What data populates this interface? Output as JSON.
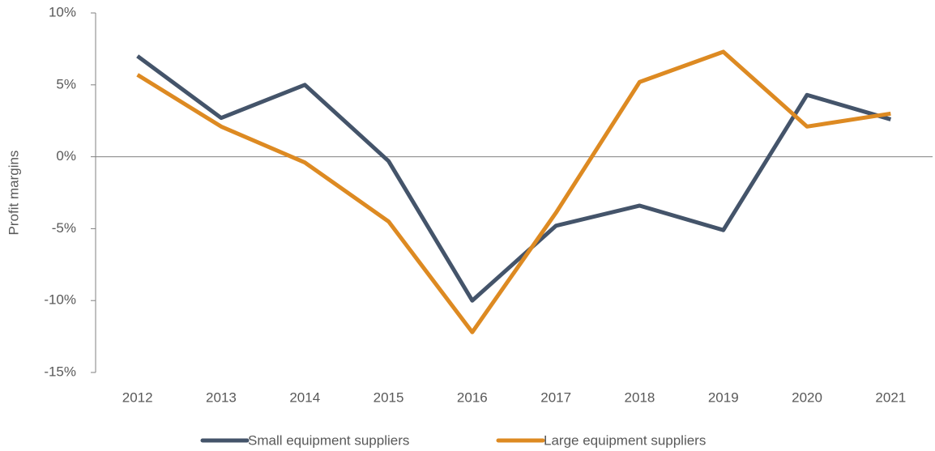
{
  "chart_data": {
    "type": "line",
    "y_label": "Profit margins",
    "categories": [
      "2012",
      "2013",
      "2014",
      "2015",
      "2016",
      "2017",
      "2018",
      "2019",
      "2020",
      "2021"
    ],
    "series": [
      {
        "name": "Small equipment suppliers",
        "color": "#44546a",
        "values": [
          7.0,
          2.7,
          5.0,
          -0.3,
          -10.0,
          -4.8,
          -3.4,
          -5.1,
          4.3,
          2.6
        ]
      },
      {
        "name": "Large equipment suppliers",
        "color": "#dd8a22",
        "values": [
          5.7,
          2.1,
          -0.4,
          -4.5,
          -12.2,
          -3.9,
          5.2,
          7.3,
          2.1,
          3.0
        ]
      }
    ],
    "ylim": [
      -15,
      10
    ],
    "yticks": [
      {
        "value": -15,
        "label": "-15%"
      },
      {
        "value": -10,
        "label": "-10%"
      },
      {
        "value": -5,
        "label": "-5%"
      },
      {
        "value": 0,
        "label": "0%"
      },
      {
        "value": 5,
        "label": "5%"
      },
      {
        "value": 10,
        "label": "10%"
      }
    ],
    "grid": false,
    "legend": "bottom"
  }
}
